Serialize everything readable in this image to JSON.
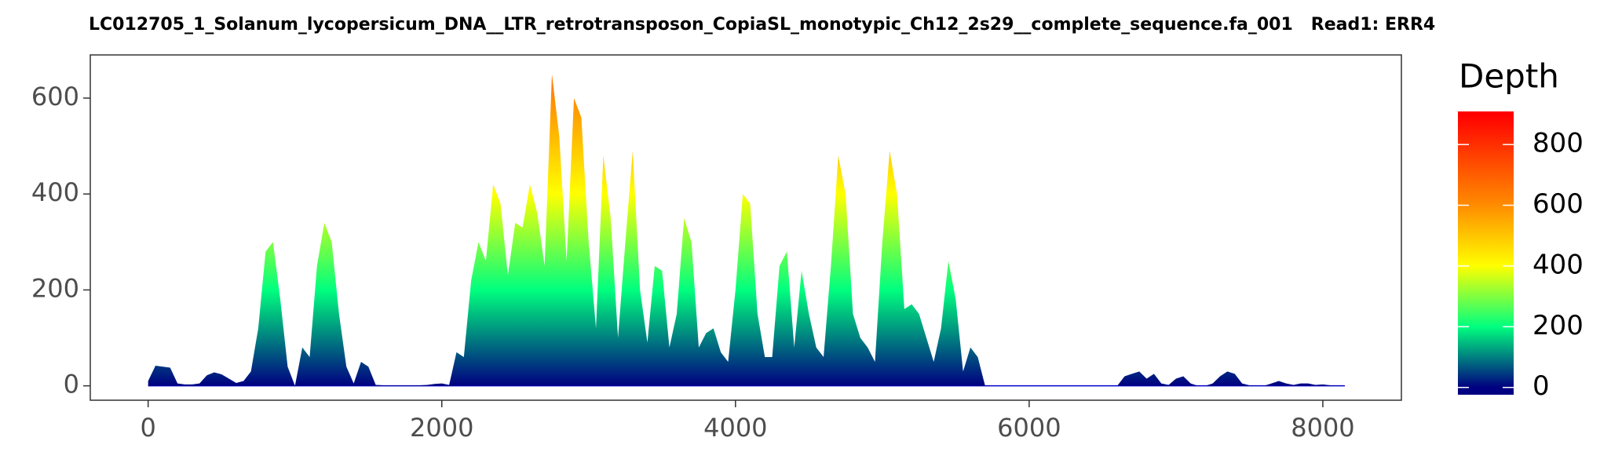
{
  "chart_data": {
    "type": "area",
    "title": "LC012705_1_Solanum_lycopersicum_DNA__LTR_retrotransposon_CopiaSL_monotypic_Ch12_2s29__complete_sequence.fa_001   Read1: ERR4",
    "x": [
      0,
      50,
      100,
      150,
      200,
      250,
      300,
      350,
      400,
      450,
      500,
      550,
      600,
      650,
      700,
      750,
      800,
      850,
      900,
      950,
      1000,
      1050,
      1100,
      1150,
      1200,
      1250,
      1300,
      1350,
      1400,
      1450,
      1500,
      1550,
      1600,
      1650,
      1700,
      1750,
      1800,
      1850,
      1900,
      1950,
      2000,
      2050,
      2100,
      2150,
      2200,
      2250,
      2300,
      2350,
      2400,
      2450,
      2500,
      2550,
      2600,
      2650,
      2700,
      2750,
      2800,
      2850,
      2900,
      2950,
      3000,
      3050,
      3100,
      3150,
      3200,
      3250,
      3300,
      3350,
      3400,
      3450,
      3500,
      3550,
      3600,
      3650,
      3700,
      3750,
      3800,
      3850,
      3900,
      3950,
      4000,
      4050,
      4100,
      4150,
      4200,
      4250,
      4300,
      4350,
      4400,
      4450,
      4500,
      4550,
      4600,
      4650,
      4700,
      4750,
      4800,
      4850,
      4900,
      4950,
      5000,
      5050,
      5100,
      5150,
      5200,
      5250,
      5300,
      5350,
      5400,
      5450,
      5500,
      5550,
      5600,
      5650,
      5700,
      5750,
      5800,
      5850,
      5900,
      5950,
      6000,
      6050,
      6100,
      6150,
      6200,
      6250,
      6300,
      6350,
      6400,
      6450,
      6500,
      6550,
      6600,
      6650,
      6700,
      6750,
      6800,
      6850,
      6900,
      6950,
      7000,
      7050,
      7100,
      7150,
      7200,
      7250,
      7300,
      7350,
      7400,
      7450,
      7500,
      7550,
      7600,
      7650,
      7700,
      7750,
      7800,
      7850,
      7900,
      7950,
      8000,
      8050,
      8100,
      8150
    ],
    "values": [
      10,
      42,
      40,
      38,
      5,
      3,
      3,
      5,
      22,
      28,
      24,
      15,
      6,
      10,
      30,
      120,
      280,
      300,
      180,
      40,
      0,
      80,
      60,
      250,
      340,
      300,
      150,
      40,
      5,
      50,
      40,
      2,
      1,
      1,
      1,
      1,
      1,
      1,
      2,
      4,
      5,
      2,
      70,
      60,
      220,
      300,
      260,
      420,
      380,
      230,
      340,
      330,
      420,
      360,
      250,
      650,
      520,
      260,
      600,
      560,
      300,
      120,
      480,
      350,
      100,
      300,
      490,
      200,
      90,
      250,
      240,
      80,
      150,
      350,
      300,
      80,
      110,
      120,
      70,
      50,
      200,
      400,
      380,
      150,
      60,
      60,
      250,
      280,
      80,
      240,
      150,
      80,
      60,
      250,
      480,
      400,
      150,
      100,
      80,
      50,
      300,
      490,
      400,
      160,
      170,
      150,
      100,
      50,
      120,
      260,
      180,
      30,
      80,
      60,
      0,
      0,
      0,
      0,
      0,
      0,
      0,
      0,
      0,
      0,
      0,
      0,
      0,
      0,
      0,
      0,
      0,
      0,
      0,
      20,
      25,
      30,
      15,
      25,
      5,
      2,
      15,
      20,
      5,
      0,
      0,
      5,
      20,
      30,
      25,
      5,
      1,
      0,
      0,
      5,
      10,
      5,
      2,
      5,
      5,
      2,
      3,
      1,
      0,
      0
    ],
    "xlim": [
      -394,
      8535
    ],
    "ylim": [
      -30,
      690
    ],
    "xticks": [
      0,
      2000,
      4000,
      6000,
      8000
    ],
    "yticks": [
      0,
      200,
      400,
      600
    ],
    "legend_title": "Depth",
    "colorbar_lim": [
      -24,
      909
    ],
    "colorbar_ticks": [
      0,
      200,
      400,
      600,
      800
    ],
    "color_stops": [
      {
        "value": 0,
        "color": "#000080"
      },
      {
        "value": 200,
        "color": "#00ff7f"
      },
      {
        "value": 400,
        "color": "#ffff00"
      },
      {
        "value": 600,
        "color": "#ff8c00"
      },
      {
        "value": 900,
        "color": "#ff0000"
      }
    ],
    "baseline_color": "#0000cd"
  }
}
